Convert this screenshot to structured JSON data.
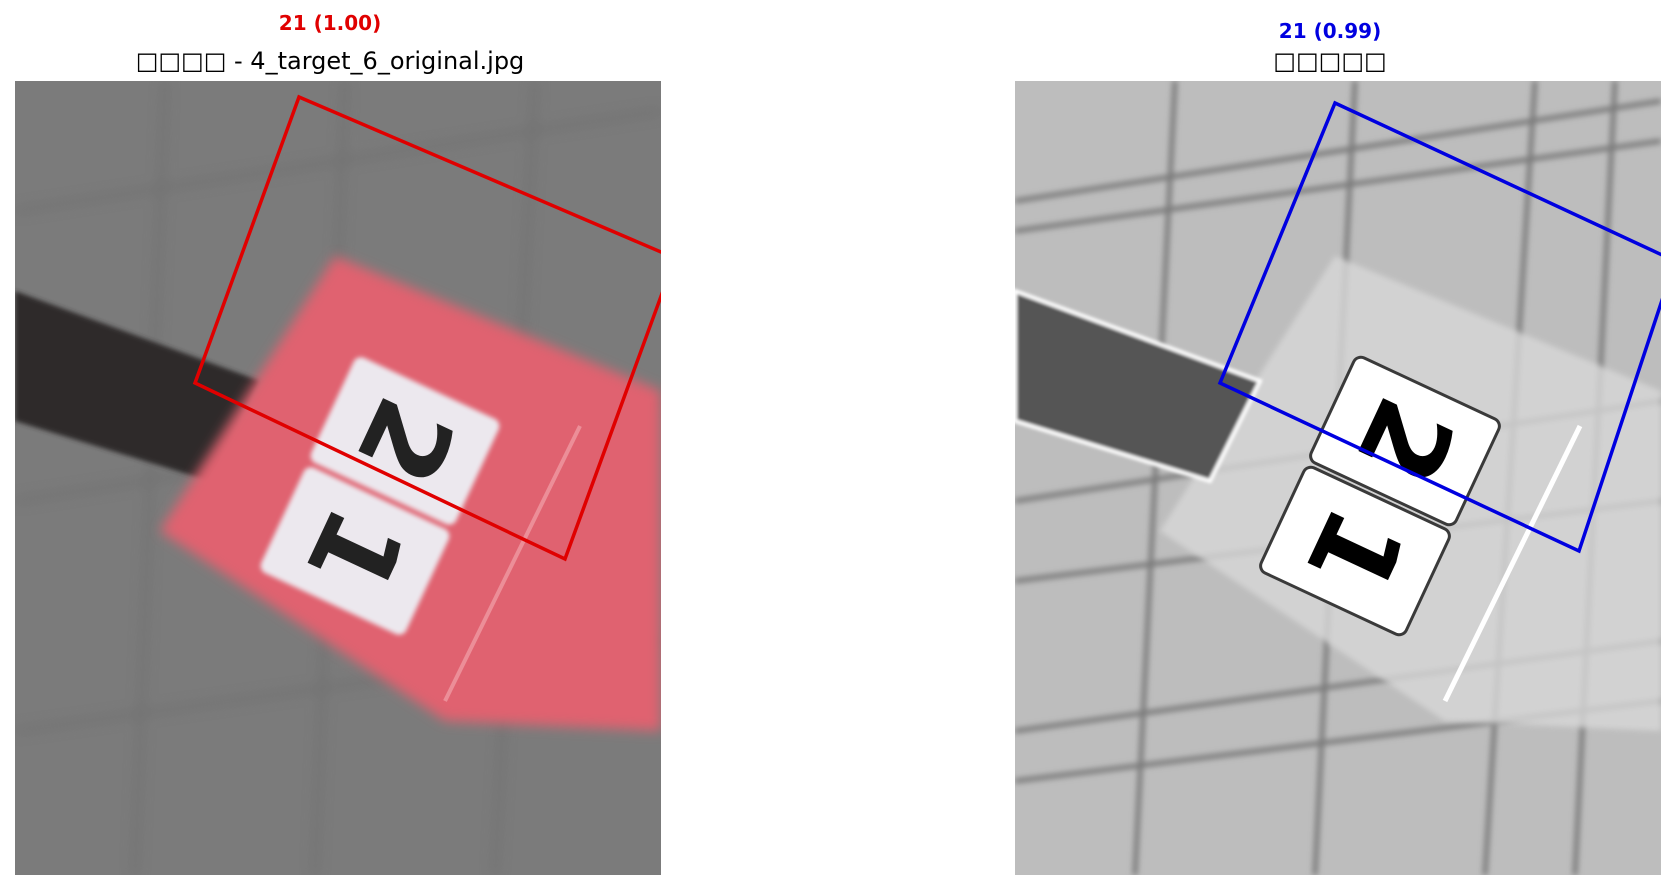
{
  "panels": [
    {
      "label": "21 (1.00)",
      "label_color": "#e00000",
      "title": "□□□□ - 4_target_6_original.jpg",
      "box_color": "#e00000",
      "image_style": "color (gray pavement with red marker)",
      "sign_digits": [
        "2",
        "1"
      ]
    },
    {
      "label": "21 (0.99)",
      "label_color": "#0000e0",
      "title": "□□□□□",
      "box_color": "#0000e0",
      "image_style": "grayscale enhanced",
      "sign_digits": [
        "2",
        "1"
      ]
    }
  ]
}
